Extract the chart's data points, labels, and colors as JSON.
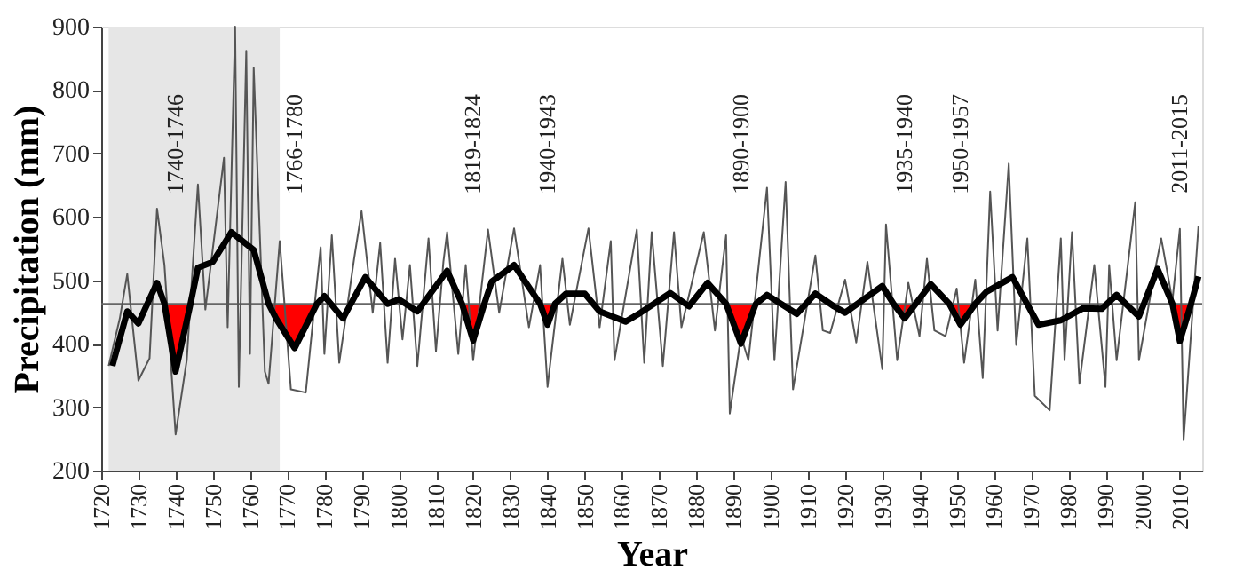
{
  "chart_data": {
    "type": "line",
    "xlabel": "Year",
    "ylabel": "Precipitation (mm)",
    "xlim": [
      1720,
      2016
    ],
    "xticks": [
      1720,
      1730,
      1740,
      1750,
      1760,
      1770,
      1780,
      1790,
      1800,
      1810,
      1820,
      1830,
      1840,
      1850,
      1860,
      1870,
      1880,
      1890,
      1900,
      1910,
      1920,
      1930,
      1940,
      1950,
      1960,
      1970,
      1980,
      1990,
      2000,
      2010
    ],
    "ylim": [
      200,
      900
    ],
    "yticks": [
      200,
      300,
      400,
      500,
      600,
      700,
      800,
      900
    ],
    "grid": false,
    "bands": [
      {
        "axis": "x",
        "from": 1722,
        "to": 1768,
        "color": "#e6e6e6"
      }
    ],
    "ref_lines": [
      {
        "axis": "y",
        "value": 463,
        "color": "#666666",
        "line_style": "solid"
      }
    ],
    "annotations": [
      "1740-1746",
      "1766-1780",
      "1819-1824",
      "1940-1943",
      "1890-1900",
      "1935-1940",
      "1950-1957",
      "2011-2015"
    ],
    "series": [
      {
        "color": "#555555",
        "x": [
          1722,
          1725,
          1727,
          1730,
          1733,
          1735,
          1737,
          1740,
          1743,
          1746,
          1748,
          1753,
          1754,
          1756,
          1757,
          1759,
          1760,
          1761,
          1764,
          1765,
          1768,
          1771,
          1775,
          1777,
          1779,
          1780,
          1782,
          1784,
          1788,
          1790,
          1793,
          1795,
          1797,
          1799,
          1801,
          1803,
          1805,
          1808,
          1810,
          1812,
          1813,
          1816,
          1818,
          1820,
          1824,
          1827,
          1831,
          1835,
          1838,
          1840,
          1844,
          1846,
          1851,
          1854,
          1857,
          1858,
          1864,
          1866,
          1868,
          1871,
          1874,
          1876,
          1882,
          1885,
          1888,
          1889,
          1892,
          1894,
          1896,
          1899,
          1901,
          1904,
          1906,
          1912,
          1914,
          1916,
          1920,
          1923,
          1926,
          1930,
          1931,
          1934,
          1937,
          1940,
          1942,
          1944,
          1947,
          1950,
          1952,
          1955,
          1957,
          1959,
          1961,
          1964,
          1966,
          1969,
          1971,
          1975,
          1978,
          1979,
          1981,
          1983,
          1987,
          1990,
          1991,
          1993,
          1998,
          1999,
          2003,
          2005,
          2008,
          2010,
          2011,
          2015
        ],
        "values": [
          365,
          440,
          510,
          342,
          377,
          613,
          524,
          257,
          374,
          651,
          454,
          693,
          426,
          900,
          332,
          862,
          384,
          835,
          356,
          337,
          562,
          328,
          323,
          440,
          552,
          384,
          571,
          370,
          534,
          609,
          449,
          559,
          370,
          534,
          407,
          524,
          365,
          566,
          388,
          529,
          576,
          384,
          524,
          374,
          580,
          449,
          582,
          426,
          524,
          332,
          534,
          430,
          582,
          426,
          562,
          374,
          580,
          370,
          576,
          365,
          576,
          426,
          576,
          421,
          571,
          290,
          412,
          374,
          482,
          646,
          374,
          655,
          328,
          539,
          421,
          417,
          501,
          402,
          529,
          360,
          588,
          374,
          496,
          412,
          534,
          421,
          412,
          487,
          370,
          501,
          346,
          640,
          421,
          684,
          398,
          566,
          318,
          295,
          566,
          374,
          576,
          337,
          524,
          332,
          524,
          374,
          623,
          374,
          506,
          566,
          468,
          581,
          248,
          585
        ]
      },
      {
        "color": "#000000",
        "x": [
          1723,
          1727,
          1730,
          1735,
          1737,
          1740,
          1744,
          1746,
          1750,
          1755,
          1761,
          1765,
          1767,
          1772,
          1778,
          1780,
          1785,
          1791,
          1797,
          1800,
          1805,
          1813,
          1817,
          1820,
          1823,
          1825,
          1831,
          1838,
          1840,
          1842,
          1845,
          1850,
          1854,
          1861,
          1865,
          1873,
          1878,
          1883,
          1888,
          1892,
          1896,
          1899,
          1907,
          1912,
          1917,
          1920,
          1930,
          1933,
          1936,
          1939,
          1943,
          1948,
          1951,
          1955,
          1958,
          1965,
          1972,
          1978,
          1984,
          1989,
          1993,
          1999,
          2004,
          2008,
          2010,
          2013,
          2015
        ],
        "values": [
          365,
          451,
          432,
          496,
          463,
          356,
          463,
          520,
          529,
          576,
          548,
          463,
          440,
          393,
          463,
          475,
          440,
          505,
          463,
          470,
          451,
          515,
          463,
          405,
          463,
          498,
          524,
          463,
          430,
          463,
          479,
          479,
          451,
          435,
          449,
          480,
          459,
          496,
          463,
          400,
          463,
          477,
          447,
          479,
          459,
          449,
          491,
          463,
          440,
          463,
          494,
          463,
          430,
          463,
          482,
          505,
          430,
          437,
          456,
          455,
          477,
          443,
          518,
          463,
          404,
          463,
          506
        ],
        "lower": [
          null,
          null,
          null,
          null,
          463,
          356,
          463,
          null,
          null,
          null,
          null,
          463,
          440,
          393,
          463,
          null,
          null,
          null,
          null,
          null,
          null,
          null,
          463,
          405,
          463,
          null,
          null,
          463,
          430,
          463,
          null,
          null,
          null,
          null,
          null,
          null,
          null,
          null,
          463,
          400,
          463,
          null,
          null,
          null,
          null,
          null,
          null,
          463,
          440,
          463,
          null,
          463,
          430,
          463,
          null,
          null,
          null,
          null,
          null,
          null,
          null,
          null,
          null,
          463,
          404,
          463,
          null
        ],
        "upper": [
          null,
          null,
          null,
          null,
          463,
          463,
          463,
          null,
          null,
          null,
          null,
          463,
          463,
          463,
          463,
          null,
          null,
          null,
          null,
          null,
          null,
          null,
          463,
          463,
          463,
          null,
          null,
          463,
          463,
          463,
          null,
          null,
          null,
          null,
          null,
          null,
          null,
          null,
          463,
          463,
          463,
          null,
          null,
          null,
          null,
          null,
          null,
          463,
          463,
          463,
          null,
          463,
          463,
          463,
          null,
          null,
          null,
          null,
          null,
          null,
          null,
          null,
          null,
          463,
          463,
          463,
          null
        ]
      }
    ]
  }
}
